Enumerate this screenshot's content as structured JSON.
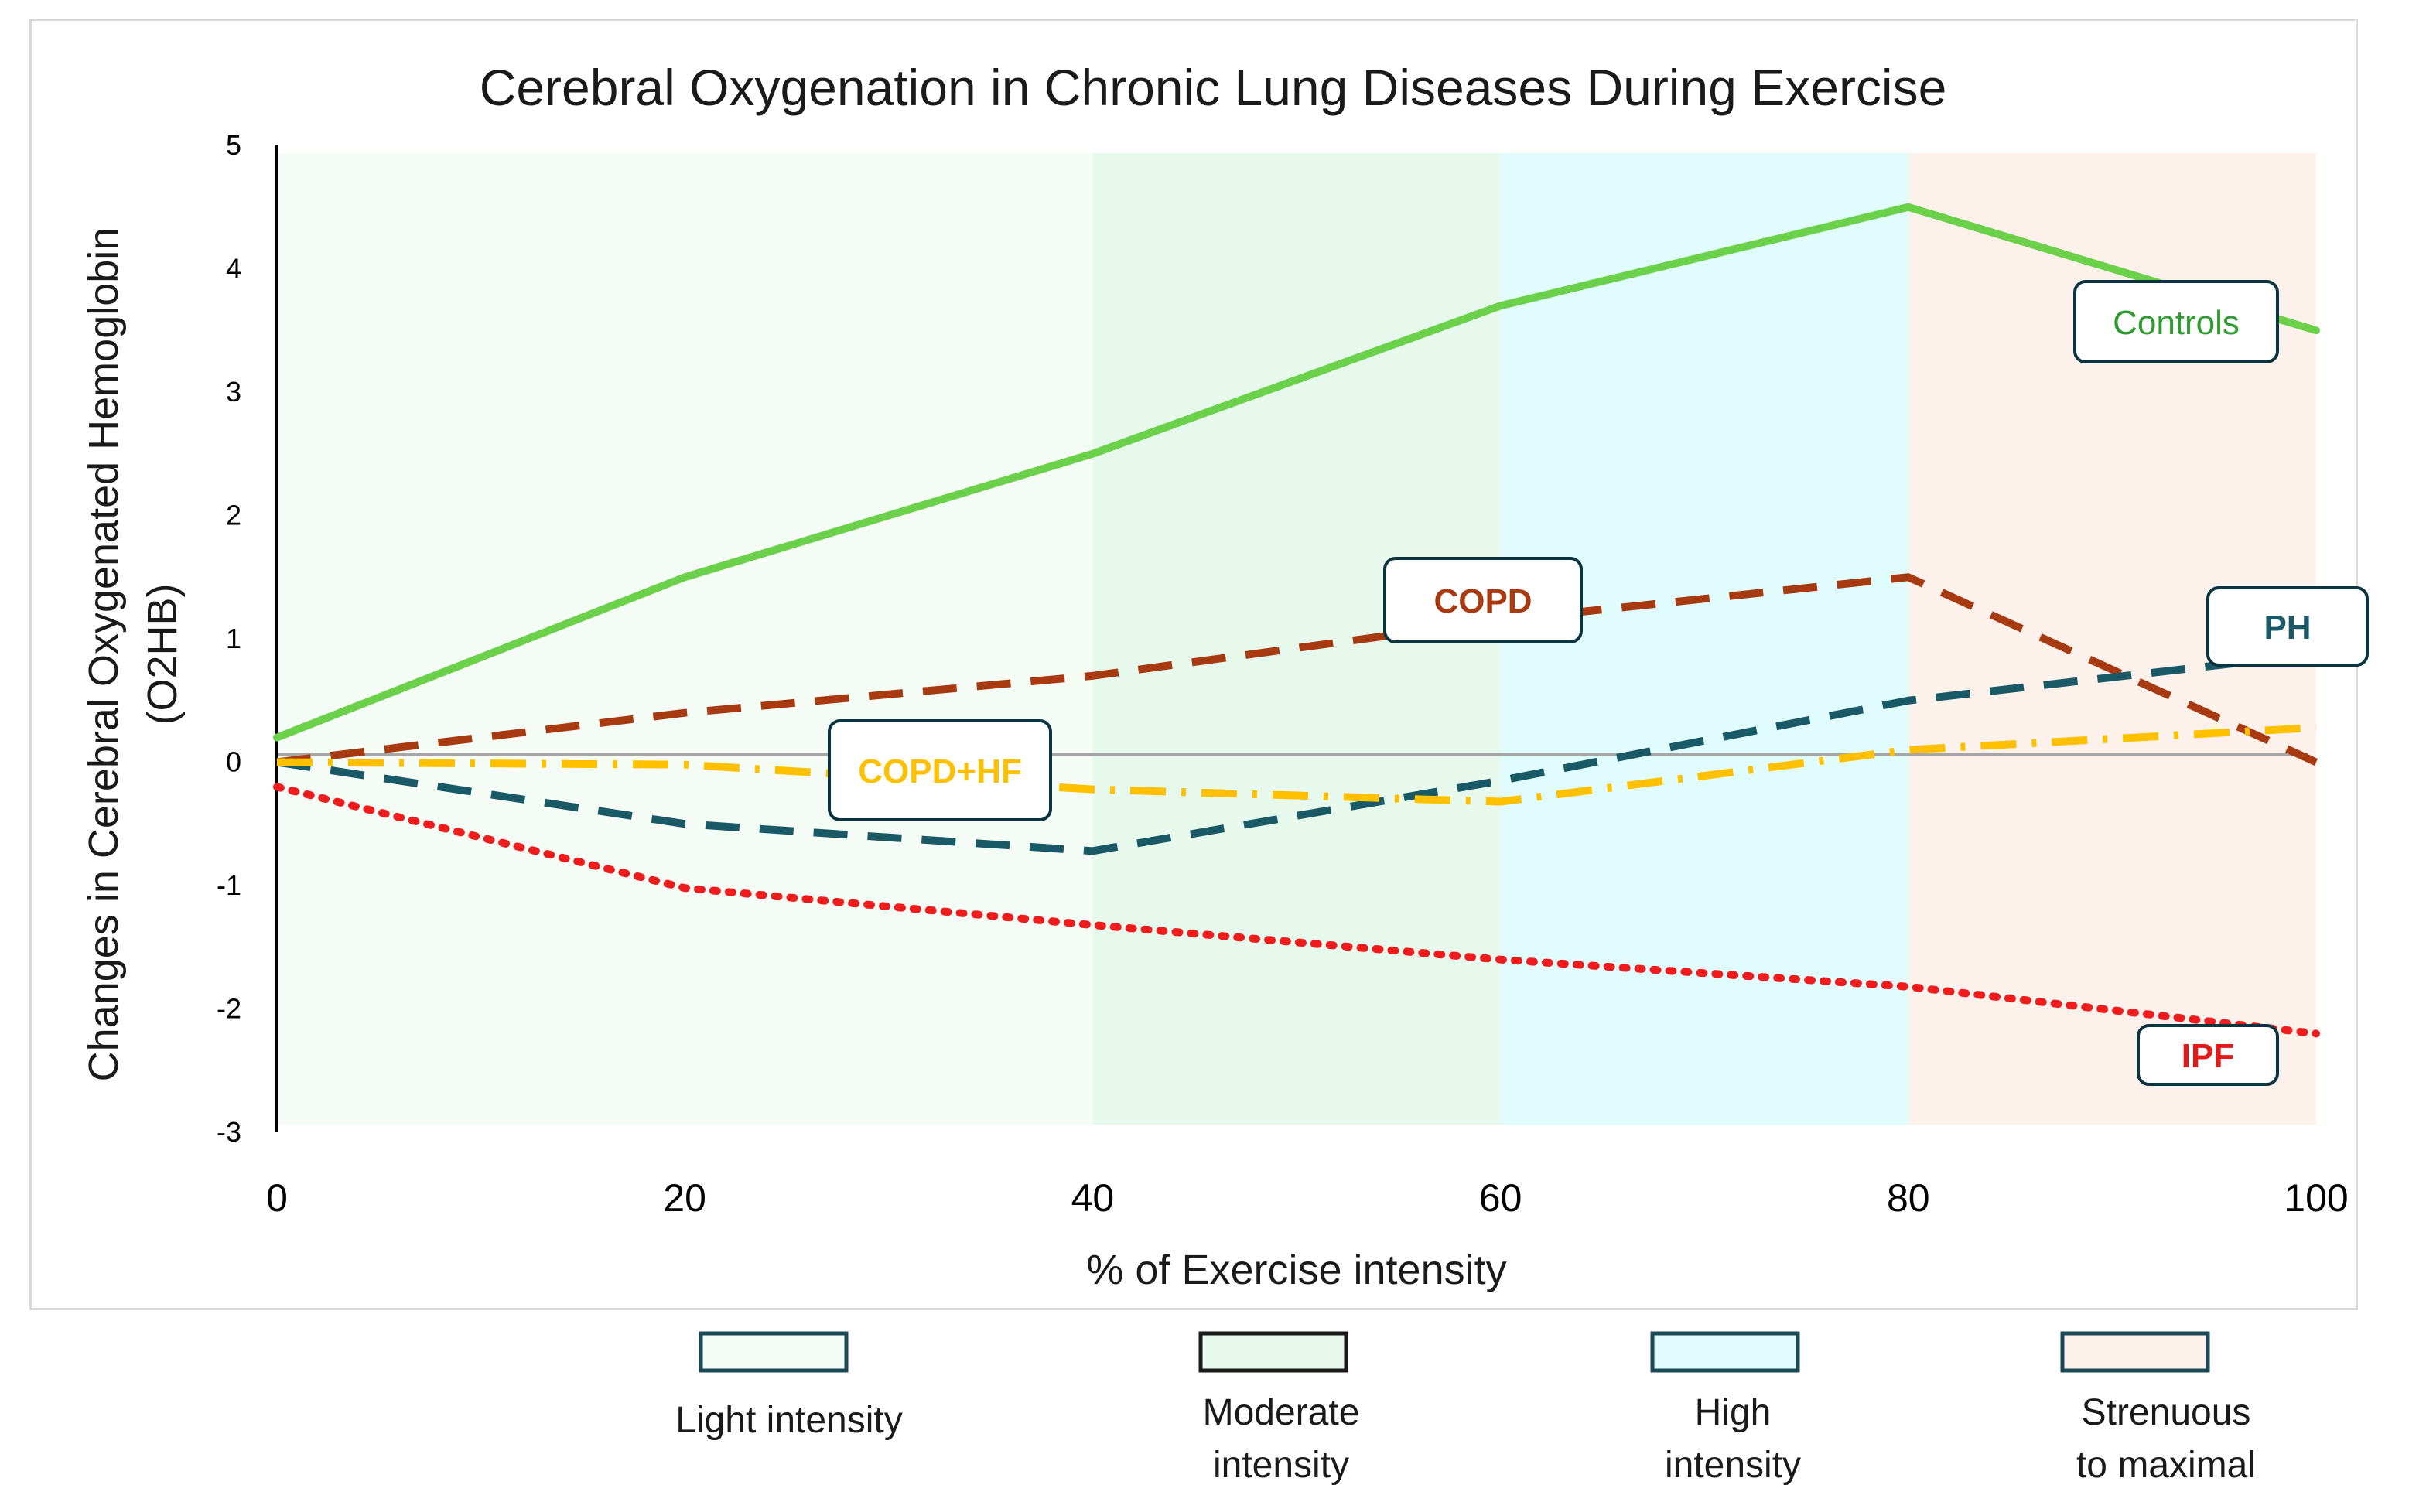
{
  "chart_data": {
    "type": "line",
    "title": "Cerebral Oxygenation in Chronic Lung Diseases During Exercise",
    "xlabel": "% of Exercise intensity",
    "ylabel_line1": "Changes in Cerebral Oxygenated Hemoglobin",
    "ylabel_line2": "(O2HB)",
    "xlim": [
      0,
      100
    ],
    "ylim": [
      -3,
      5
    ],
    "xticks": [
      "0",
      "20",
      "40",
      "60",
      "80",
      "100"
    ],
    "yticks": [
      "5",
      "4",
      "3",
      "2",
      "1",
      "0",
      "-1",
      "-2",
      "-3"
    ],
    "zones": [
      {
        "label_lines": [
          "Light intensity"
        ],
        "from": 0,
        "to": 40,
        "color": "#f5fcf6"
      },
      {
        "label_lines": [
          "Moderate",
          "intensity"
        ],
        "from": 40,
        "to": 60,
        "color": "#e7f8ec"
      },
      {
        "label_lines": [
          "High",
          "intensity"
        ],
        "from": 60,
        "to": 80,
        "color": "#e1fcfd"
      },
      {
        "label_lines": [
          "Strenuous",
          "to maximal"
        ],
        "from": 80,
        "to": 100,
        "color": "#fdf1ec"
      }
    ],
    "series": [
      {
        "name": "Controls",
        "color": "#6cd14a",
        "dash": "solid",
        "x": [
          0,
          20,
          40,
          60,
          80,
          100
        ],
        "values": [
          0.2,
          1.5,
          2.5,
          3.7,
          4.5,
          3.5
        ]
      },
      {
        "name": "COPD",
        "color": "#a83a12",
        "dash": "dash",
        "x": [
          0,
          20,
          40,
          60,
          80,
          100
        ],
        "values": [
          0,
          0.4,
          0.7,
          1.15,
          1.5,
          0
        ]
      },
      {
        "name": "PH",
        "color": "#1a5a66",
        "dash": "dash",
        "x": [
          0,
          20,
          40,
          60,
          80,
          97
        ],
        "values": [
          0,
          -0.5,
          -0.72,
          -0.15,
          0.5,
          0.82
        ]
      },
      {
        "name": "COPD+HF",
        "color": "#ffc000",
        "dash": "dashdot",
        "x": [
          0,
          20,
          40,
          60,
          80,
          100
        ],
        "values": [
          0,
          -0.02,
          -0.22,
          -0.32,
          0.1,
          0.28
        ]
      },
      {
        "name": "IPF",
        "color": "#ee1c1c",
        "dash": "dot",
        "x": [
          0,
          20,
          40,
          60,
          80,
          100
        ],
        "values": [
          -0.2,
          -1.02,
          -1.32,
          -1.6,
          -1.82,
          -2.2
        ]
      }
    ],
    "series_labels": [
      {
        "text": "Controls",
        "color": "#2e9c2e"
      },
      {
        "text": "COPD",
        "color": "#a83a12"
      },
      {
        "text": "PH",
        "color": "#1a5a66"
      },
      {
        "text": "COPD+HF",
        "color": "#ffc000"
      },
      {
        "text": "IPF",
        "color": "#e21a1a"
      }
    ]
  }
}
